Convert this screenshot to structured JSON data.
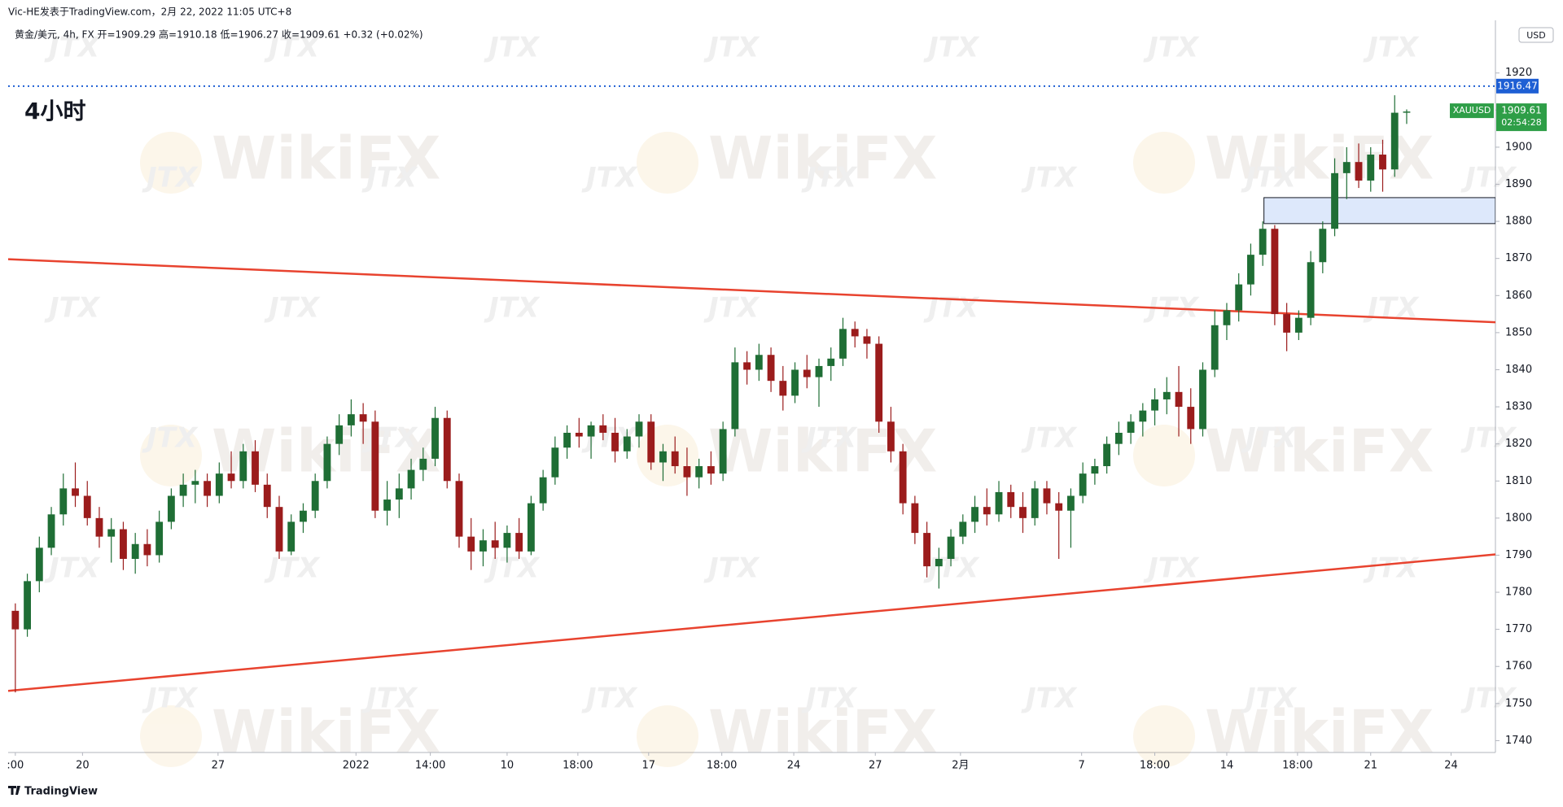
{
  "header": {
    "publisher": "Vic-HE发表于TradingView.com，2月 22, 2022 11:05 UTC+8",
    "footer": "TradingView"
  },
  "watermark": {
    "brand": "WikiFX",
    "mark": "JTX"
  },
  "chart_data": {
    "type": "candlestick",
    "symbol_info": "黄金/美元, 4h, FX  开=1909.29  高=1910.18  低=1906.27  收=1909.61  +0.32 (+0.02%)",
    "timeframe_label": "4小时",
    "currency": "USD",
    "symbol": "XAUUSD",
    "up_color": "#1f6e35",
    "down_color": "#9b1c1c",
    "grid": false,
    "ylim": [
      1736.8,
      1934.2
    ],
    "yticks": [
      1740,
      1750,
      1760,
      1770,
      1780,
      1790,
      1800,
      1810,
      1820,
      1830,
      1840,
      1850,
      1860,
      1870,
      1880,
      1890,
      1900,
      1910,
      1920
    ],
    "xlim": [
      -0.6,
      123.4
    ],
    "xticks": [
      {
        "value": 0,
        "label": ":00"
      },
      {
        "value": 5.6,
        "label": "20"
      },
      {
        "value": 16.9,
        "label": "27"
      },
      {
        "value": 28.4,
        "label": "2022"
      },
      {
        "value": 34.6,
        "label": "14:00"
      },
      {
        "value": 41.0,
        "label": "10"
      },
      {
        "value": 46.9,
        "label": "18:00"
      },
      {
        "value": 52.8,
        "label": "17"
      },
      {
        "value": 58.9,
        "label": "18:00"
      },
      {
        "value": 64.9,
        "label": "24"
      },
      {
        "value": 71.7,
        "label": "27"
      },
      {
        "value": 78.8,
        "label": "2月"
      },
      {
        "value": 88.9,
        "label": "7"
      },
      {
        "value": 95.0,
        "label": "18:00"
      },
      {
        "value": 101.0,
        "label": "14"
      },
      {
        "value": 106.9,
        "label": "18:00"
      },
      {
        "value": 113.0,
        "label": "21"
      },
      {
        "value": 119.7,
        "label": "24"
      }
    ],
    "candles": [
      [
        1775,
        1777,
        1753,
        1770
      ],
      [
        1770,
        1785,
        1768,
        1783
      ],
      [
        1783,
        1795,
        1780,
        1792
      ],
      [
        1792,
        1803,
        1790,
        1801
      ],
      [
        1801,
        1812,
        1798,
        1808
      ],
      [
        1808,
        1815,
        1803,
        1806
      ],
      [
        1806,
        1810,
        1798,
        1800
      ],
      [
        1800,
        1803,
        1792,
        1795
      ],
      [
        1795,
        1800,
        1788,
        1797
      ],
      [
        1797,
        1799,
        1786,
        1789
      ],
      [
        1789,
        1796,
        1785,
        1793
      ],
      [
        1793,
        1797,
        1787,
        1790
      ],
      [
        1790,
        1802,
        1788,
        1799
      ],
      [
        1799,
        1808,
        1797,
        1806
      ],
      [
        1806,
        1812,
        1803,
        1809
      ],
      [
        1809,
        1813,
        1804,
        1810
      ],
      [
        1810,
        1812,
        1803,
        1806
      ],
      [
        1806,
        1815,
        1804,
        1812
      ],
      [
        1812,
        1818,
        1808,
        1810
      ],
      [
        1810,
        1820,
        1808,
        1818
      ],
      [
        1818,
        1821,
        1807,
        1809
      ],
      [
        1809,
        1812,
        1800,
        1803
      ],
      [
        1803,
        1806,
        1789,
        1791
      ],
      [
        1791,
        1801,
        1790,
        1799
      ],
      [
        1799,
        1804,
        1796,
        1802
      ],
      [
        1802,
        1812,
        1800,
        1810
      ],
      [
        1810,
        1822,
        1808,
        1820
      ],
      [
        1820,
        1828,
        1817,
        1825
      ],
      [
        1825,
        1832,
        1822,
        1828
      ],
      [
        1828,
        1831,
        1820,
        1826
      ],
      [
        1826,
        1829,
        1800,
        1802
      ],
      [
        1802,
        1810,
        1798,
        1805
      ],
      [
        1805,
        1812,
        1800,
        1808
      ],
      [
        1808,
        1816,
        1805,
        1813
      ],
      [
        1813,
        1819,
        1810,
        1816
      ],
      [
        1816,
        1830,
        1814,
        1827
      ],
      [
        1827,
        1829,
        1808,
        1810
      ],
      [
        1810,
        1812,
        1792,
        1795
      ],
      [
        1795,
        1800,
        1786,
        1791
      ],
      [
        1791,
        1797,
        1787,
        1794
      ],
      [
        1794,
        1799,
        1789,
        1792
      ],
      [
        1792,
        1798,
        1788,
        1796
      ],
      [
        1796,
        1800,
        1789,
        1791
      ],
      [
        1791,
        1806,
        1790,
        1804
      ],
      [
        1804,
        1813,
        1802,
        1811
      ],
      [
        1811,
        1822,
        1809,
        1819
      ],
      [
        1819,
        1825,
        1816,
        1823
      ],
      [
        1823,
        1827,
        1819,
        1822
      ],
      [
        1822,
        1826,
        1816,
        1825
      ],
      [
        1825,
        1828,
        1821,
        1823
      ],
      [
        1823,
        1827,
        1815,
        1818
      ],
      [
        1818,
        1824,
        1816,
        1822
      ],
      [
        1822,
        1828,
        1819,
        1826
      ],
      [
        1826,
        1828,
        1813,
        1815
      ],
      [
        1815,
        1820,
        1810,
        1818
      ],
      [
        1818,
        1822,
        1812,
        1814
      ],
      [
        1814,
        1819,
        1806,
        1811
      ],
      [
        1811,
        1816,
        1808,
        1814
      ],
      [
        1814,
        1818,
        1809,
        1812
      ],
      [
        1812,
        1826,
        1810,
        1824
      ],
      [
        1824,
        1846,
        1822,
        1842
      ],
      [
        1842,
        1845,
        1836,
        1840
      ],
      [
        1840,
        1847,
        1837,
        1844
      ],
      [
        1844,
        1846,
        1834,
        1837
      ],
      [
        1837,
        1841,
        1829,
        1833
      ],
      [
        1833,
        1842,
        1831,
        1840
      ],
      [
        1840,
        1844,
        1835,
        1838
      ],
      [
        1838,
        1843,
        1830,
        1841
      ],
      [
        1841,
        1846,
        1837,
        1843
      ],
      [
        1843,
        1854,
        1841,
        1851
      ],
      [
        1851,
        1853,
        1846,
        1849
      ],
      [
        1849,
        1851,
        1843,
        1847
      ],
      [
        1847,
        1849,
        1823,
        1826
      ],
      [
        1826,
        1830,
        1815,
        1818
      ],
      [
        1818,
        1820,
        1801,
        1804
      ],
      [
        1804,
        1806,
        1793,
        1796
      ],
      [
        1796,
        1799,
        1784,
        1787
      ],
      [
        1787,
        1792,
        1781,
        1789
      ],
      [
        1789,
        1797,
        1787,
        1795
      ],
      [
        1795,
        1801,
        1793,
        1799
      ],
      [
        1799,
        1806,
        1796,
        1803
      ],
      [
        1803,
        1808,
        1798,
        1801
      ],
      [
        1801,
        1810,
        1799,
        1807
      ],
      [
        1807,
        1809,
        1800,
        1803
      ],
      [
        1803,
        1807,
        1796,
        1800
      ],
      [
        1800,
        1810,
        1798,
        1808
      ],
      [
        1808,
        1810,
        1801,
        1804
      ],
      [
        1804,
        1807,
        1789,
        1802
      ],
      [
        1802,
        1808,
        1792,
        1806
      ],
      [
        1806,
        1815,
        1804,
        1812
      ],
      [
        1812,
        1816,
        1809,
        1814
      ],
      [
        1814,
        1822,
        1812,
        1820
      ],
      [
        1820,
        1826,
        1817,
        1823
      ],
      [
        1823,
        1828,
        1820,
        1826
      ],
      [
        1826,
        1831,
        1822,
        1829
      ],
      [
        1829,
        1835,
        1825,
        1832
      ],
      [
        1832,
        1838,
        1828,
        1834
      ],
      [
        1834,
        1841,
        1822,
        1830
      ],
      [
        1830,
        1835,
        1820,
        1824
      ],
      [
        1824,
        1842,
        1822,
        1840
      ],
      [
        1840,
        1856,
        1838,
        1852
      ],
      [
        1852,
        1858,
        1848,
        1856
      ],
      [
        1856,
        1866,
        1853,
        1863
      ],
      [
        1863,
        1874,
        1860,
        1871
      ],
      [
        1871,
        1880,
        1868,
        1878
      ],
      [
        1878,
        1879,
        1852,
        1855
      ],
      [
        1855,
        1858,
        1845,
        1850
      ],
      [
        1850,
        1856,
        1848,
        1854
      ],
      [
        1854,
        1872,
        1852,
        1869
      ],
      [
        1869,
        1880,
        1866,
        1878
      ],
      [
        1878,
        1897,
        1876,
        1893
      ],
      [
        1893,
        1900,
        1886,
        1896
      ],
      [
        1896,
        1901,
        1889,
        1891
      ],
      [
        1891,
        1900,
        1888,
        1898
      ],
      [
        1898,
        1902,
        1888,
        1894
      ],
      [
        1894,
        1914,
        1892,
        1909.29
      ],
      [
        1909.29,
        1910.18,
        1906.27,
        1909.61
      ]
    ],
    "last_price": 1909.61,
    "last_price_color": "#2e9e47",
    "countdown": "02:54:28",
    "alert_line": {
      "value": 1916.47,
      "color": "#1e5fd4"
    },
    "trend_lines": [
      {
        "color": "#e8432f",
        "points": [
          [
            -0.6,
            1869.8
          ],
          [
            123.4,
            1852.8
          ]
        ]
      },
      {
        "color": "#e8432f",
        "points": [
          [
            -0.6,
            1753.4
          ],
          [
            123.4,
            1790.2
          ]
        ]
      }
    ],
    "zone": {
      "x": [
        104.1,
        123.4
      ],
      "y": [
        1879.4,
        1886.4
      ],
      "color": "#dde8fb"
    }
  }
}
